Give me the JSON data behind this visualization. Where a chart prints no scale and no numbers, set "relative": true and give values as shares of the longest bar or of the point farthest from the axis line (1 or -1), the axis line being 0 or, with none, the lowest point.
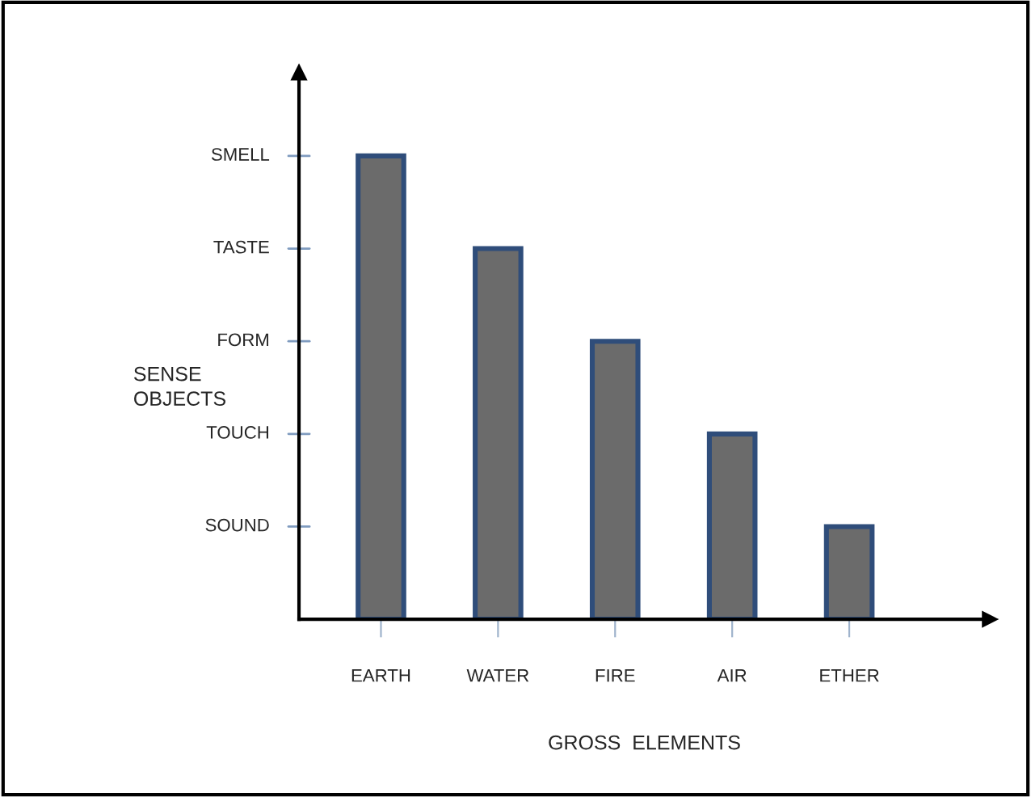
{
  "chart_data": {
    "type": "bar",
    "xlabel": "GROSS  ELEMENTS",
    "ylabel": "SENSE\nOBJECTS",
    "categories": [
      "EARTH",
      "WATER",
      "FIRE",
      "AIR",
      "ETHER"
    ],
    "values": [
      1,
      0.8,
      0.6,
      0.4,
      0.2
    ],
    "color": "#6b6b6b",
    "relative": true,
    "annotations": [
      "SOUND",
      "TOUCH",
      "FORM",
      "TASTE",
      "SMELL"
    ],
    "grid": false,
    "legend": false
  }
}
